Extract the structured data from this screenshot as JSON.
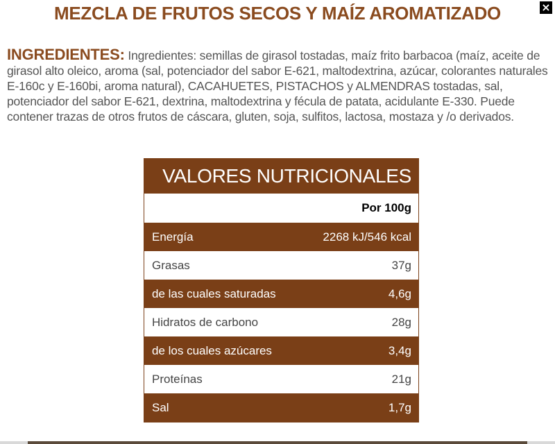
{
  "title": "MEZCLA DE FRUTOS SECOS Y MAÍZ AROMATIZADO",
  "close_label": "×",
  "ingredients": {
    "label": "INGREDIENTES:",
    "text": "Ingredientes: semillas de girasol tostadas, maíz frito barbacoa (maíz, aceite de girasol alto oleico, aroma (sal, potenciador del sabor E-621, maltodextrina, azúcar, colorantes naturales E-160c y E-160bi, aroma natural), CACAHUETES, PISTACHOS y ALMENDRAS tostadas, sal, potenciador del sabor E-621, dextrina, maltodextrina y fécula de patata, acidulante E-330. Puede contener trazas de otros frutos de cáscara, gluten, soja, sulfitos, lactosa, mostaza y /o derivados."
  },
  "nutrition": {
    "title": "VALORES NUTRICIONALES",
    "per": "Por 100g",
    "rows": [
      {
        "name": "Energía",
        "value": "2268 kJ/546 kcal"
      },
      {
        "name": "Grasas",
        "value": "37g"
      },
      {
        "name": "de las cuales saturadas",
        "value": "4,6g"
      },
      {
        "name": "Hidratos de carbono",
        "value": "28g"
      },
      {
        "name": "de los cuales azúcares",
        "value": "3,4g"
      },
      {
        "name": "Proteínas",
        "value": "21g"
      },
      {
        "name": "Sal",
        "value": "1,7g"
      }
    ],
    "colors": {
      "brown": "#7a3f17",
      "title_text": "#8a4b1f"
    }
  }
}
